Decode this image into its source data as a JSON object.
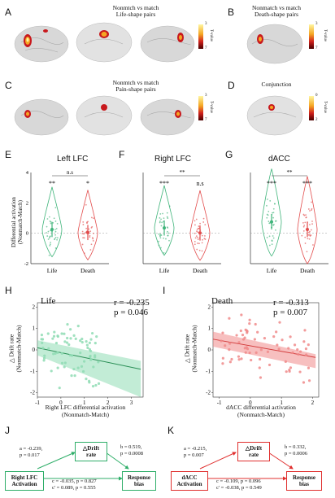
{
  "panel_letters": {
    "A": "A",
    "B": "B",
    "C": "C",
    "D": "D",
    "E": "E",
    "F": "F",
    "G": "G",
    "H": "H",
    "I": "I",
    "J": "J",
    "K": "K"
  },
  "brain_panels": {
    "A": {
      "title_line1": "Nonmtch vs match",
      "title_line2": "Life-shape pairs",
      "cbar_title": "T-value",
      "cbar_top": "3",
      "cbar_bottom": "7"
    },
    "B": {
      "title_line1": "Nonmatch vs match",
      "title_line2": "Death-shape pairs",
      "cbar_title": "T-value",
      "cbar_top": "3",
      "cbar_bottom": "7"
    },
    "C": {
      "title_line1": "Nonmtch vs match",
      "title_line2": "Pain-shape pairs",
      "cbar_title": "T-value",
      "cbar_top": "3",
      "cbar_bottom": "7"
    },
    "D": {
      "title_line1": "Conjunction",
      "title_line2": "",
      "cbar_title": "T-value",
      "cbar_top": "0",
      "cbar_bottom": "2"
    }
  },
  "violin_panels": {
    "shared_ylabel_line1": "Differential activation",
    "shared_ylabel_line2": "(Nonmatch-Match)",
    "E": {
      "title": "Left LFC",
      "sig_between": "n.s",
      "sig_life": "**",
      "sig_death": "*",
      "ticks": [
        "4",
        "2",
        "0",
        "-2"
      ]
    },
    "F": {
      "title": "Right LFC",
      "sig_between": "**",
      "sig_life": "***",
      "sig_death": "n.s"
    },
    "G": {
      "title": "dACC",
      "sig_between": "**",
      "sig_life": "***",
      "sig_death": "***"
    },
    "x_labels": [
      "Life",
      "Death"
    ]
  },
  "scatter_panels": {
    "H": {
      "title": "Life",
      "r_text": "r = -0.235",
      "p_text": "p = 0.046",
      "xlabel_line1": "Right LFC differential activation",
      "xlabel_line2": "(Nonmatch-Match)",
      "ylabel_line1": "△ Drift rate",
      "ylabel_line2": "(Nonmatch-Match)",
      "xticks": [
        "-1",
        "0",
        "1",
        "2",
        "3"
      ],
      "yticks": [
        "2",
        "1",
        "0",
        "-1",
        "-2"
      ]
    },
    "I": {
      "title": "Death",
      "r_text": "r = -0.313",
      "p_text": "p = 0.007",
      "xlabel_line1": "dACC differential activation",
      "xlabel_line2": "(Nonmatch-Match)",
      "ylabel_line1": "△ Drift rate",
      "ylabel_line2": "(Nonmatch-Match)",
      "xticks": [
        "-1",
        "0",
        "1",
        "2"
      ],
      "yticks": [
        "2",
        "1",
        "0",
        "-1",
        "-2"
      ]
    }
  },
  "mediation_panels": {
    "J": {
      "mediator_line1": "△Drift",
      "mediator_line2": "rate",
      "x_line1": "Right LFC",
      "x_line2": "Activation",
      "y_line1": "Response",
      "y_line2": "bias",
      "a_line1": "a = -0.239,",
      "a_line2": "p = 0.017",
      "b_line1": "b = 0.519,",
      "b_line2": "p = 0.0008",
      "c_line1": "c = -0.035, p = 0.827",
      "c_line2": "c' = 0.089, p = 0.555",
      "color": "#2fae69"
    },
    "K": {
      "mediator_line1": "△Drift",
      "mediator_line2": "rate",
      "x_line1": "dACC",
      "x_line2": "Activation",
      "y_line1": "Response",
      "y_line2": "bias",
      "a_line1": "a = -0.215,",
      "a_line2": "p = 0.007",
      "b_line1": "b = 0.332,",
      "b_line2": "p = 0.0006",
      "c_line1": "c = -0.109, p = 0.096",
      "c_line2": "c' = -0.038, p = 0.549",
      "color": "#e0302f"
    }
  },
  "chart_data": [
    {
      "type": "violin",
      "panel": "E",
      "title": "Left LFC",
      "categories": [
        "Life",
        "Death"
      ],
      "ylabel": "Differential activation (Nonmatch-Match)",
      "ylim": [
        -2,
        4
      ],
      "colors": [
        "#3fb47a",
        "#e24b4b"
      ],
      "means": [
        0.25,
        0.05
      ]
    },
    {
      "type": "violin",
      "panel": "F",
      "title": "Right LFC",
      "categories": [
        "Life",
        "Death"
      ],
      "ylim": [
        -2,
        4
      ],
      "colors": [
        "#3fb47a",
        "#e24b4b"
      ],
      "means": [
        0.35,
        0.02
      ]
    },
    {
      "type": "violin",
      "panel": "G",
      "title": "dACC",
      "categories": [
        "Life",
        "Death"
      ],
      "ylim": [
        -2,
        4
      ],
      "colors": [
        "#3fb47a",
        "#e24b4b"
      ],
      "means": [
        0.75,
        0.25
      ]
    },
    {
      "type": "scatter",
      "panel": "H",
      "title": "Life",
      "xlim": [
        -1,
        3.5
      ],
      "ylim": [
        -2.2,
        2.2
      ],
      "color": "#8fdcb4",
      "fit": {
        "x": [
          -1,
          3.4
        ],
        "y": [
          0.1,
          -0.9
        ]
      },
      "r": -0.235,
      "p": 0.046
    },
    {
      "type": "scatter",
      "panel": "I",
      "title": "Death",
      "xlim": [
        -1.2,
        2.2
      ],
      "ylim": [
        -2.2,
        2.2
      ],
      "color": "#f08a8a",
      "fit": {
        "x": [
          -1.2,
          2.1
        ],
        "y": [
          0.5,
          -0.35
        ]
      },
      "r": -0.313,
      "p": 0.007
    }
  ]
}
